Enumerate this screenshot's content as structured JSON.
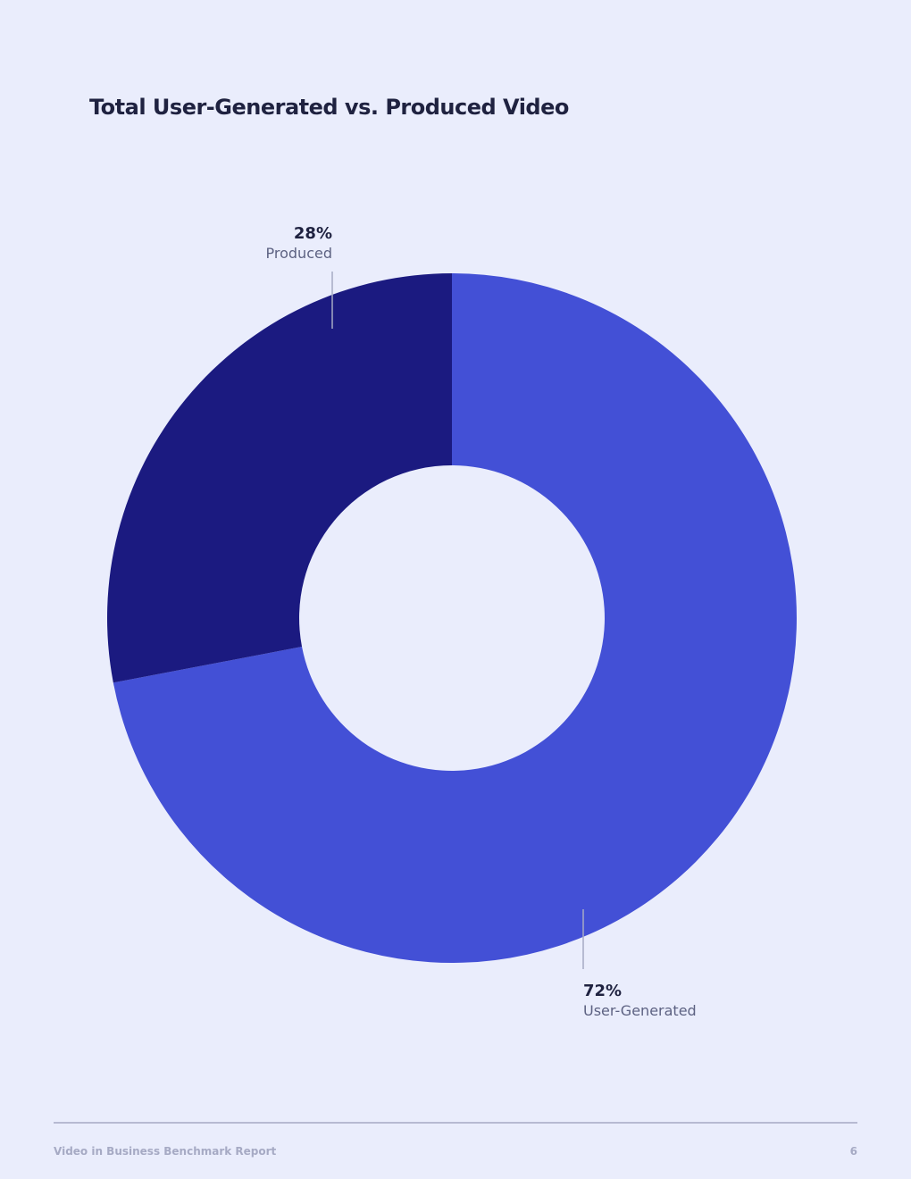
{
  "chart_data": {
    "type": "pie",
    "donut": true,
    "title": "Total User-Generated vs. Produced Video",
    "categories": [
      "User-Generated",
      "Produced"
    ],
    "values": [
      72,
      28
    ],
    "value_labels": [
      "72%",
      "28%"
    ],
    "colors": [
      "#4350d6",
      "#1b1a80"
    ]
  },
  "footer": {
    "report": "Video in Business Benchmark Report",
    "page": "6"
  }
}
